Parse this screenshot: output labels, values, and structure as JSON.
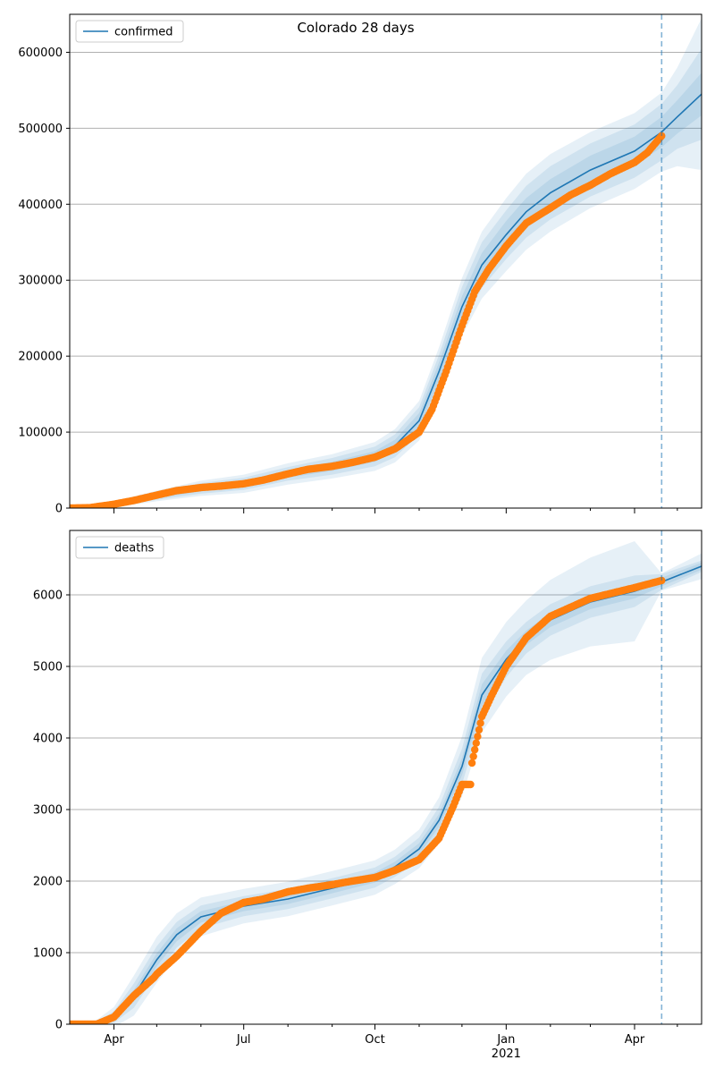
{
  "figure": {
    "title": "Colorado 28 days"
  },
  "colors": {
    "model_line": "#1f77b4",
    "band": "#1f77b4",
    "observed": "#ff7f0e",
    "forecast_marker": "#1f77b4",
    "grid": "#b0b0b0",
    "axis": "#000000"
  },
  "x_axis": {
    "type": "date",
    "range": [
      "2020-03-01",
      "2021-05-18"
    ],
    "major_ticks": [
      {
        "date": "2020-04-01",
        "label": "Apr",
        "sublabel": ""
      },
      {
        "date": "2020-07-01",
        "label": "Jul",
        "sublabel": ""
      },
      {
        "date": "2020-10-01",
        "label": "Oct",
        "sublabel": ""
      },
      {
        "date": "2021-01-01",
        "label": "Jan",
        "sublabel": "2021"
      },
      {
        "date": "2021-04-01",
        "label": "Apr",
        "sublabel": ""
      }
    ],
    "minor_ticks": [
      "2020-05-01",
      "2020-06-01",
      "2020-08-01",
      "2020-09-01",
      "2020-11-01",
      "2020-12-01",
      "2021-02-01",
      "2021-03-01",
      "2021-05-01"
    ]
  },
  "forecast_start": "2021-04-20",
  "chart_data": [
    {
      "type": "line",
      "name": "confirmed",
      "legend_position": "top-left",
      "grid": "horizontal",
      "ylim": [
        0,
        650000
      ],
      "yticks": [
        0,
        100000,
        200000,
        300000,
        400000,
        500000,
        600000
      ],
      "model": {
        "x": [
          "2020-03-01",
          "2020-04-01",
          "2020-05-01",
          "2020-06-01",
          "2020-07-01",
          "2020-08-01",
          "2020-09-01",
          "2020-10-01",
          "2020-10-15",
          "2020-11-01",
          "2020-11-15",
          "2020-12-01",
          "2020-12-15",
          "2021-01-01",
          "2021-01-15",
          "2021-02-01",
          "2021-03-01",
          "2021-04-01",
          "2021-04-20",
          "2021-05-01",
          "2021-05-18"
        ],
        "y": [
          1000,
          5000,
          16000,
          26000,
          32000,
          45000,
          55000,
          68000,
          82000,
          115000,
          180000,
          265000,
          320000,
          360000,
          390000,
          415000,
          445000,
          470000,
          495000,
          515000,
          545000
        ],
        "bands": [
          {
            "delta": [
              1000,
              2000,
              3000,
              4000,
              4000,
              5000,
              6000,
              7000,
              8000,
              10000,
              12000,
              14000,
              16000,
              18000,
              18000,
              18000,
              19000,
              19000,
              20000,
              22000,
              28000
            ]
          },
          {
            "delta": [
              1000,
              3000,
              5000,
              7000,
              8000,
              9000,
              11000,
              13000,
              15000,
              18000,
              22000,
              26000,
              30000,
              32000,
              34000,
              35000,
              35000,
              35000,
              37000,
              42000,
              60000
            ]
          },
          {
            "delta": [
              1000,
              4000,
              7000,
              10000,
              12000,
              14000,
              16000,
              19000,
              22000,
              26000,
              32000,
              38000,
              44000,
              48000,
              50000,
              51000,
              50000,
              50000,
              52000,
              65000,
              100000
            ]
          }
        ]
      },
      "observed": {
        "x": [
          "2020-03-01",
          "2020-03-15",
          "2020-04-01",
          "2020-04-15",
          "2020-05-01",
          "2020-05-15",
          "2020-06-01",
          "2020-06-15",
          "2020-07-01",
          "2020-07-15",
          "2020-08-01",
          "2020-08-15",
          "2020-09-01",
          "2020-09-15",
          "2020-10-01",
          "2020-10-15",
          "2020-11-01",
          "2020-11-10",
          "2020-11-20",
          "2020-12-01",
          "2020-12-10",
          "2020-12-20",
          "2021-01-01",
          "2021-01-15",
          "2021-02-01",
          "2021-02-15",
          "2021-03-01",
          "2021-03-15",
          "2021-04-01",
          "2021-04-10",
          "2021-04-20"
        ],
        "y": [
          0,
          500,
          5000,
          10000,
          17000,
          23000,
          27000,
          29000,
          32000,
          37000,
          45000,
          51000,
          55000,
          60000,
          67000,
          78000,
          100000,
          130000,
          180000,
          240000,
          285000,
          315000,
          345000,
          375000,
          395000,
          412000,
          425000,
          440000,
          455000,
          468000,
          490000
        ]
      }
    },
    {
      "type": "line",
      "name": "deaths",
      "legend_position": "top-left",
      "grid": "horizontal",
      "ylim": [
        0,
        6900
      ],
      "yticks": [
        0,
        1000,
        2000,
        3000,
        4000,
        5000,
        6000
      ],
      "model": {
        "x": [
          "2020-03-01",
          "2020-03-20",
          "2020-04-01",
          "2020-04-15",
          "2020-05-01",
          "2020-05-15",
          "2020-06-01",
          "2020-07-01",
          "2020-08-01",
          "2020-09-01",
          "2020-10-01",
          "2020-10-15",
          "2020-11-01",
          "2020-11-15",
          "2020-12-01",
          "2020-12-15",
          "2021-01-01",
          "2021-01-15",
          "2021-02-01",
          "2021-03-01",
          "2021-04-01",
          "2021-04-20",
          "2021-05-18"
        ],
        "y": [
          0,
          20,
          100,
          400,
          900,
          1250,
          1500,
          1650,
          1750,
          1900,
          2050,
          2200,
          2450,
          2850,
          3600,
          4600,
          5100,
          5400,
          5650,
          5900,
          6050,
          6180,
          6400
        ],
        "bands": [
          {
            "delta": [
              0,
              10,
              40,
              80,
              90,
              90,
              80,
              70,
              70,
              70,
              70,
              70,
              80,
              90,
              120,
              150,
              120,
              100,
              100,
              100,
              100,
              60,
              50
            ]
          },
          {
            "delta": [
              0,
              20,
              80,
              170,
              190,
              180,
              160,
              140,
              140,
              140,
              140,
              140,
              160,
              190,
              250,
              300,
              250,
              220,
              220,
              220,
              220,
              110,
              80
            ]
          },
          {
            "delta": [
              0,
              40,
              140,
              280,
              320,
              300,
              270,
              240,
              240,
              240,
              240,
              240,
              270,
              320,
              420,
              520,
              520,
              520,
              560,
              620,
              700,
              120,
              180
            ]
          }
        ]
      },
      "observed": {
        "x": [
          "2020-03-01",
          "2020-03-20",
          "2020-04-01",
          "2020-04-15",
          "2020-04-29",
          "2020-05-01",
          "2020-05-15",
          "2020-06-01",
          "2020-06-15",
          "2020-07-01",
          "2020-07-15",
          "2020-08-01",
          "2020-08-15",
          "2020-09-01",
          "2020-09-15",
          "2020-10-01",
          "2020-10-15",
          "2020-11-01",
          "2020-11-15",
          "2020-11-25",
          "2020-12-01",
          "2020-12-07",
          "2020-12-08",
          "2020-12-15",
          "2020-12-22",
          "2021-01-01",
          "2021-01-15",
          "2021-02-01",
          "2021-03-01",
          "2021-04-01",
          "2021-04-20"
        ],
        "y": [
          0,
          0,
          100,
          400,
          650,
          700,
          950,
          1300,
          1550,
          1700,
          1750,
          1850,
          1900,
          1950,
          2000,
          2050,
          2150,
          2300,
          2600,
          3050,
          3350,
          3350,
          3650,
          4300,
          4600,
          5000,
          5400,
          5700,
          5950,
          6100,
          6200
        ]
      }
    }
  ]
}
